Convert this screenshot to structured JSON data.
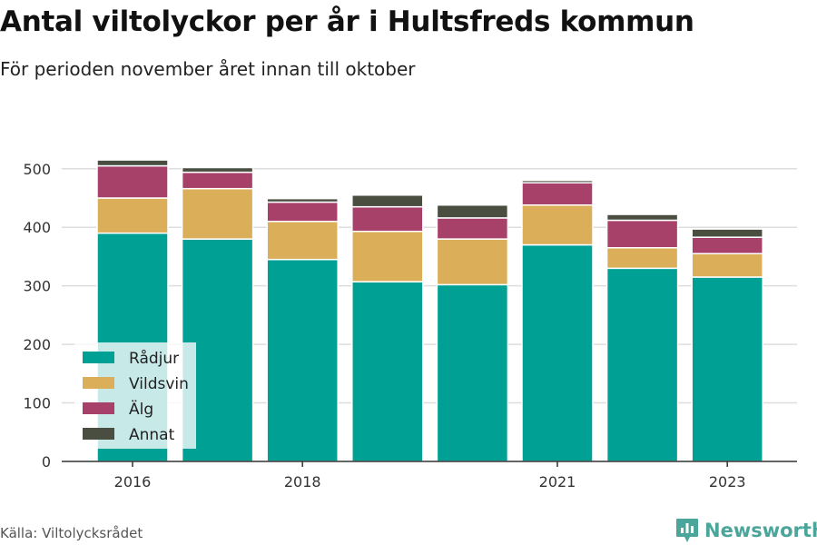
{
  "title": "Antal viltolyckor per år i Hultsfreds kommun",
  "subtitle": "För perioden november året innan till oktober",
  "source": "Källa: Viltolycksrådet",
  "brand": "Newsworthy",
  "colors": {
    "Rådjur": "#00a095",
    "Vildsvin": "#dbae5a",
    "Älg": "#a7416a",
    "Annat": "#4a4e40",
    "grid": "#dddddd",
    "axis": "#333333",
    "brand": "#4aa59a"
  },
  "chart_data": {
    "type": "bar",
    "stacked": true,
    "categories": [
      "2016",
      "2017",
      "2018",
      "2019",
      "2020",
      "2021",
      "2022",
      "2023"
    ],
    "x_tick_labels": [
      "2016",
      "",
      "2018",
      "",
      "",
      "2021",
      "",
      "2023"
    ],
    "series": [
      {
        "name": "Rådjur",
        "values": [
          390,
          380,
          345,
          307,
          302,
          370,
          330,
          315
        ]
      },
      {
        "name": "Vildsvin",
        "values": [
          60,
          86,
          65,
          86,
          78,
          68,
          35,
          40
        ]
      },
      {
        "name": "Älg",
        "values": [
          55,
          28,
          33,
          42,
          36,
          38,
          47,
          28
        ]
      },
      {
        "name": "Annat",
        "values": [
          10,
          8,
          6,
          20,
          22,
          4,
          10,
          14
        ]
      }
    ],
    "ylim": [
      0,
      540
    ],
    "yticks": [
      0,
      100,
      200,
      300,
      400,
      500
    ],
    "xlabel": "",
    "ylabel": "",
    "grid": true,
    "legend_position": "bottom-left"
  }
}
